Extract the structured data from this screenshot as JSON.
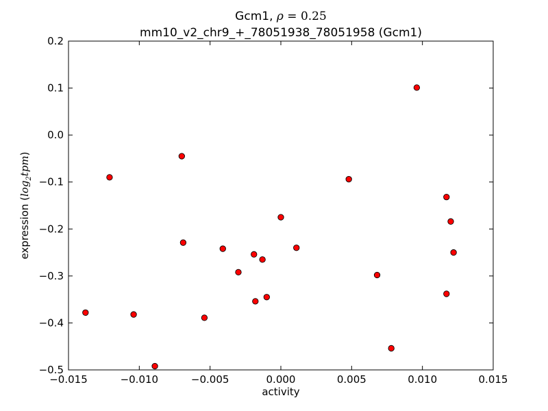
{
  "chart_data": {
    "type": "scatter",
    "title_gene": "Gcm1",
    "title_rho_symbol": "ρ",
    "title_rho_value": "0.25",
    "subtitle": "mm10_v2_chr9_+_78051938_78051958 (Gcm1)",
    "xlabel": "activity",
    "ylabel_prefix": "expression (",
    "ylabel_math": "log",
    "ylabel_sub": "2",
    "ylabel_math2": "tpm",
    "ylabel_suffix": ")",
    "xlim": [
      -0.015,
      0.015
    ],
    "ylim": [
      -0.5,
      0.2
    ],
    "x_ticks": [
      -0.015,
      -0.01,
      -0.005,
      0.0,
      0.005,
      0.01,
      0.015
    ],
    "x_tick_labels": [
      "−0.015",
      "−0.010",
      "−0.005",
      "0.000",
      "0.005",
      "0.010",
      "0.015"
    ],
    "y_ticks": [
      0.2,
      0.1,
      0.0,
      -0.1,
      -0.2,
      -0.3,
      -0.4,
      -0.5
    ],
    "y_tick_labels": [
      "0.2",
      "0.1",
      "0.0",
      "−0.1",
      "−0.2",
      "−0.3",
      "−0.4",
      "−0.5"
    ],
    "grid": false,
    "marker_color": "#ff0000",
    "marker_edge": "#000000",
    "points": [
      {
        "x": -0.0138,
        "y": -0.378
      },
      {
        "x": -0.0121,
        "y": -0.09
      },
      {
        "x": -0.0104,
        "y": -0.382
      },
      {
        "x": -0.0089,
        "y": -0.492
      },
      {
        "x": -0.007,
        "y": -0.045
      },
      {
        "x": -0.0069,
        "y": -0.229
      },
      {
        "x": -0.0054,
        "y": -0.389
      },
      {
        "x": -0.0041,
        "y": -0.242
      },
      {
        "x": -0.003,
        "y": -0.292
      },
      {
        "x": -0.0019,
        "y": -0.254
      },
      {
        "x": -0.0018,
        "y": -0.354
      },
      {
        "x": -0.0013,
        "y": -0.265
      },
      {
        "x": -0.001,
        "y": -0.345
      },
      {
        "x": 0.0,
        "y": -0.175
      },
      {
        "x": 0.0011,
        "y": -0.24
      },
      {
        "x": 0.0048,
        "y": -0.094
      },
      {
        "x": 0.0068,
        "y": -0.298
      },
      {
        "x": 0.0078,
        "y": -0.454
      },
      {
        "x": 0.0096,
        "y": 0.101
      },
      {
        "x": 0.0117,
        "y": -0.132
      },
      {
        "x": 0.0117,
        "y": -0.338
      },
      {
        "x": 0.012,
        "y": -0.184
      },
      {
        "x": 0.0122,
        "y": -0.25
      }
    ]
  }
}
